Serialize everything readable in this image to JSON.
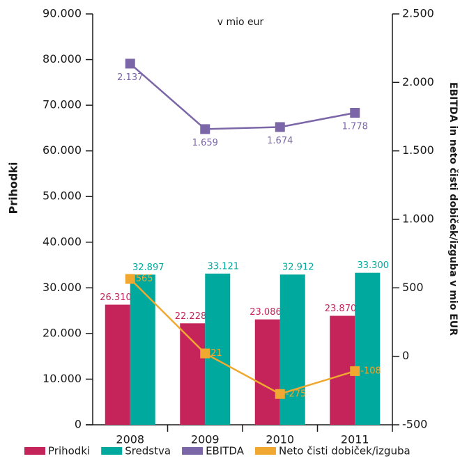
{
  "chart_data": {
    "type": "bar-line",
    "title": "v mio eur",
    "y_label": "Prihodki",
    "y2_label": "EBITDA in neto čisti dobiček/izguba v mio EUR",
    "categories": [
      "2008",
      "2009",
      "2010",
      "2011"
    ],
    "series": [
      {
        "name": "Prihodki",
        "type": "bar",
        "color": "#c4245a",
        "values": [
          26310,
          22228,
          23086,
          23870
        ],
        "value_labels": [
          "26.310",
          "22.228",
          "23.086",
          "23.870"
        ]
      },
      {
        "name": "Sredstva",
        "type": "bar",
        "color": "#00a99d",
        "values": [
          32897,
          33121,
          32912,
          33300
        ],
        "value_labels": [
          "32.897",
          "33.121",
          "32.912",
          "33.300"
        ]
      },
      {
        "name": "EBITDA",
        "type": "line",
        "axis": "y2",
        "color": "#7b66a8",
        "values": [
          2137,
          1659,
          1674,
          1778
        ],
        "value_labels": [
          "2.137",
          "1.659",
          "1.674",
          "1.778"
        ]
      },
      {
        "name": "Neto čisti dobiček/izguba",
        "type": "line",
        "axis": "y2",
        "color": "#f0a830",
        "values": [
          565,
          21,
          -275,
          -108
        ]
      }
    ],
    "ylim": [
      0,
      90000
    ],
    "yticks": [
      0,
      {
        "value": 10000,
        "label": "10.000"
      },
      {
        "value": 20000,
        "label": "20.000"
      },
      {
        "value": 30000,
        "label": "30.000"
      },
      {
        "value": 40000,
        "label": "40.000"
      },
      {
        "value": 50000,
        "label": "50.000"
      },
      {
        "value": 60000,
        "label": "60.000"
      },
      {
        "value": 70000,
        "label": "70.000"
      },
      {
        "value": 80000,
        "label": "80.000"
      },
      {
        "value": 90000,
        "label": "90.000"
      }
    ],
    "y2lim": [
      -500,
      2500
    ],
    "y2ticks": [
      -500,
      0,
      500,
      {
        "value": 1000,
        "label": "1.000"
      },
      {
        "value": 1500,
        "label": "1.500"
      },
      {
        "value": 2000,
        "label": "2.000"
      },
      {
        "value": 2500,
        "label": "2.500"
      }
    ],
    "grid": false,
    "legend": "bottom"
  }
}
